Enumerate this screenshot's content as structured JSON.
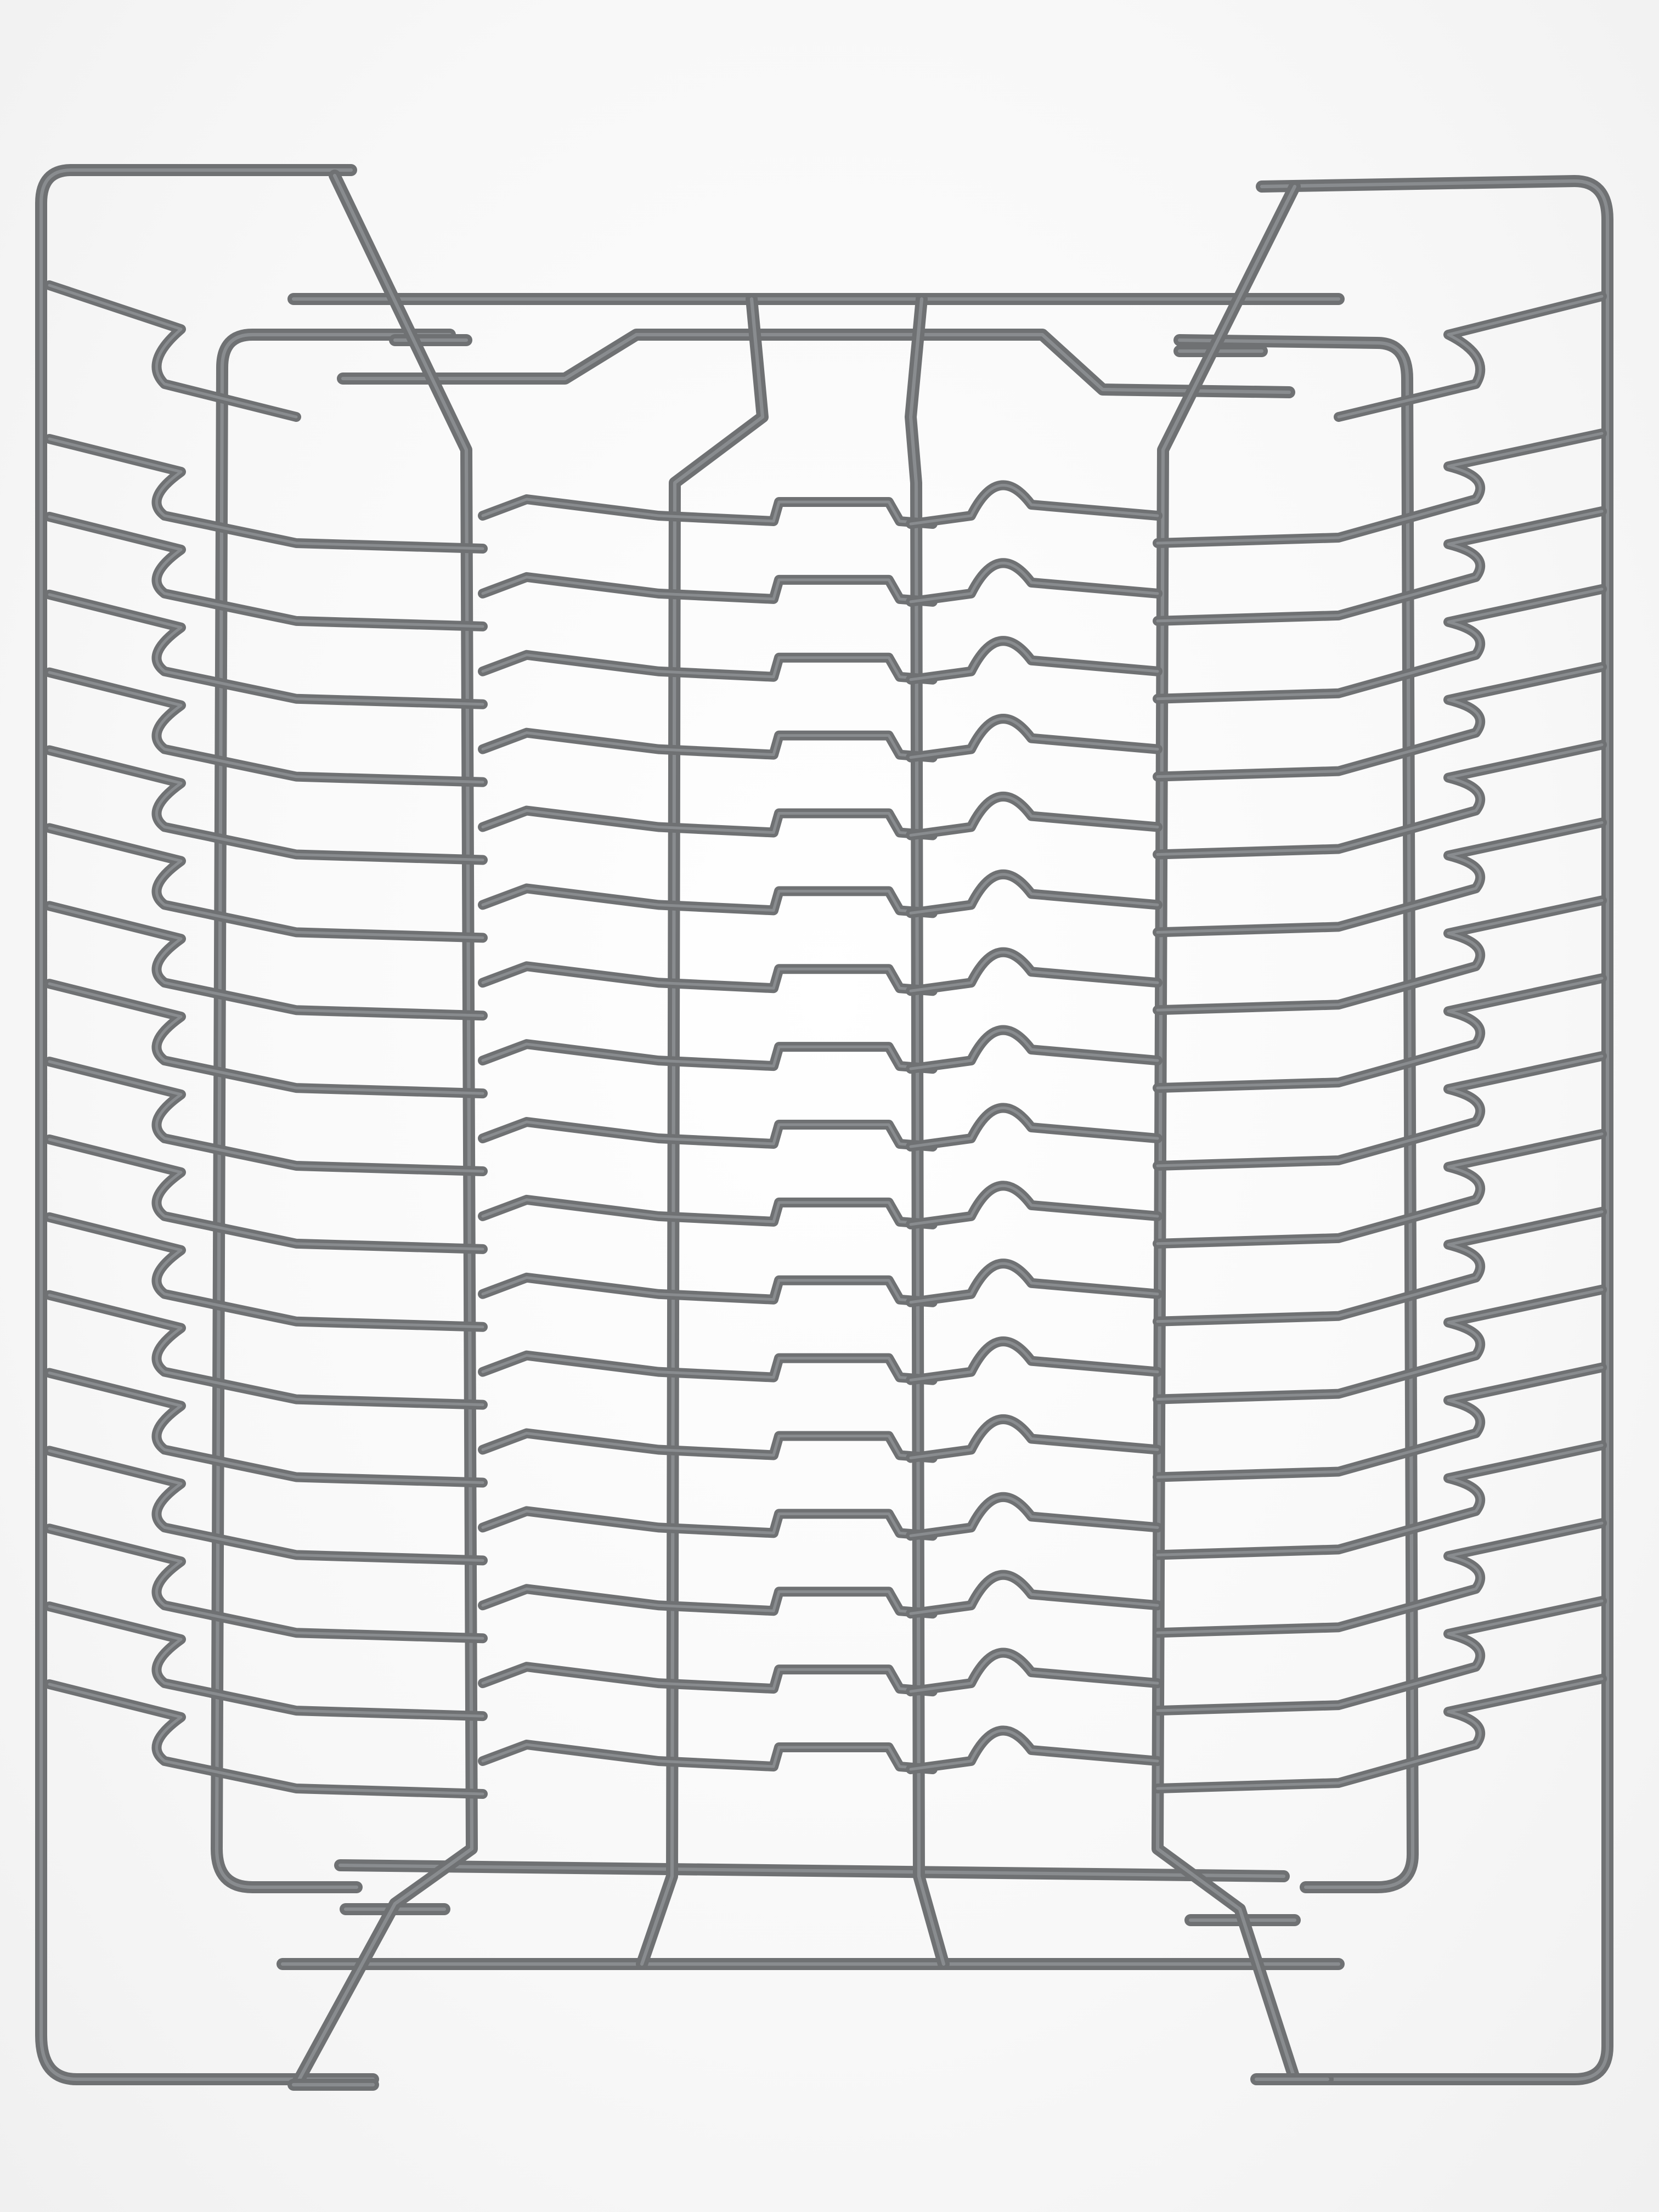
{
  "photo": {
    "subject": "",
    "wire_color": "#6f7173",
    "wire_highlight": "#9fa2a5",
    "background_color": "#f7f7f7",
    "tine_rows": 17
  }
}
